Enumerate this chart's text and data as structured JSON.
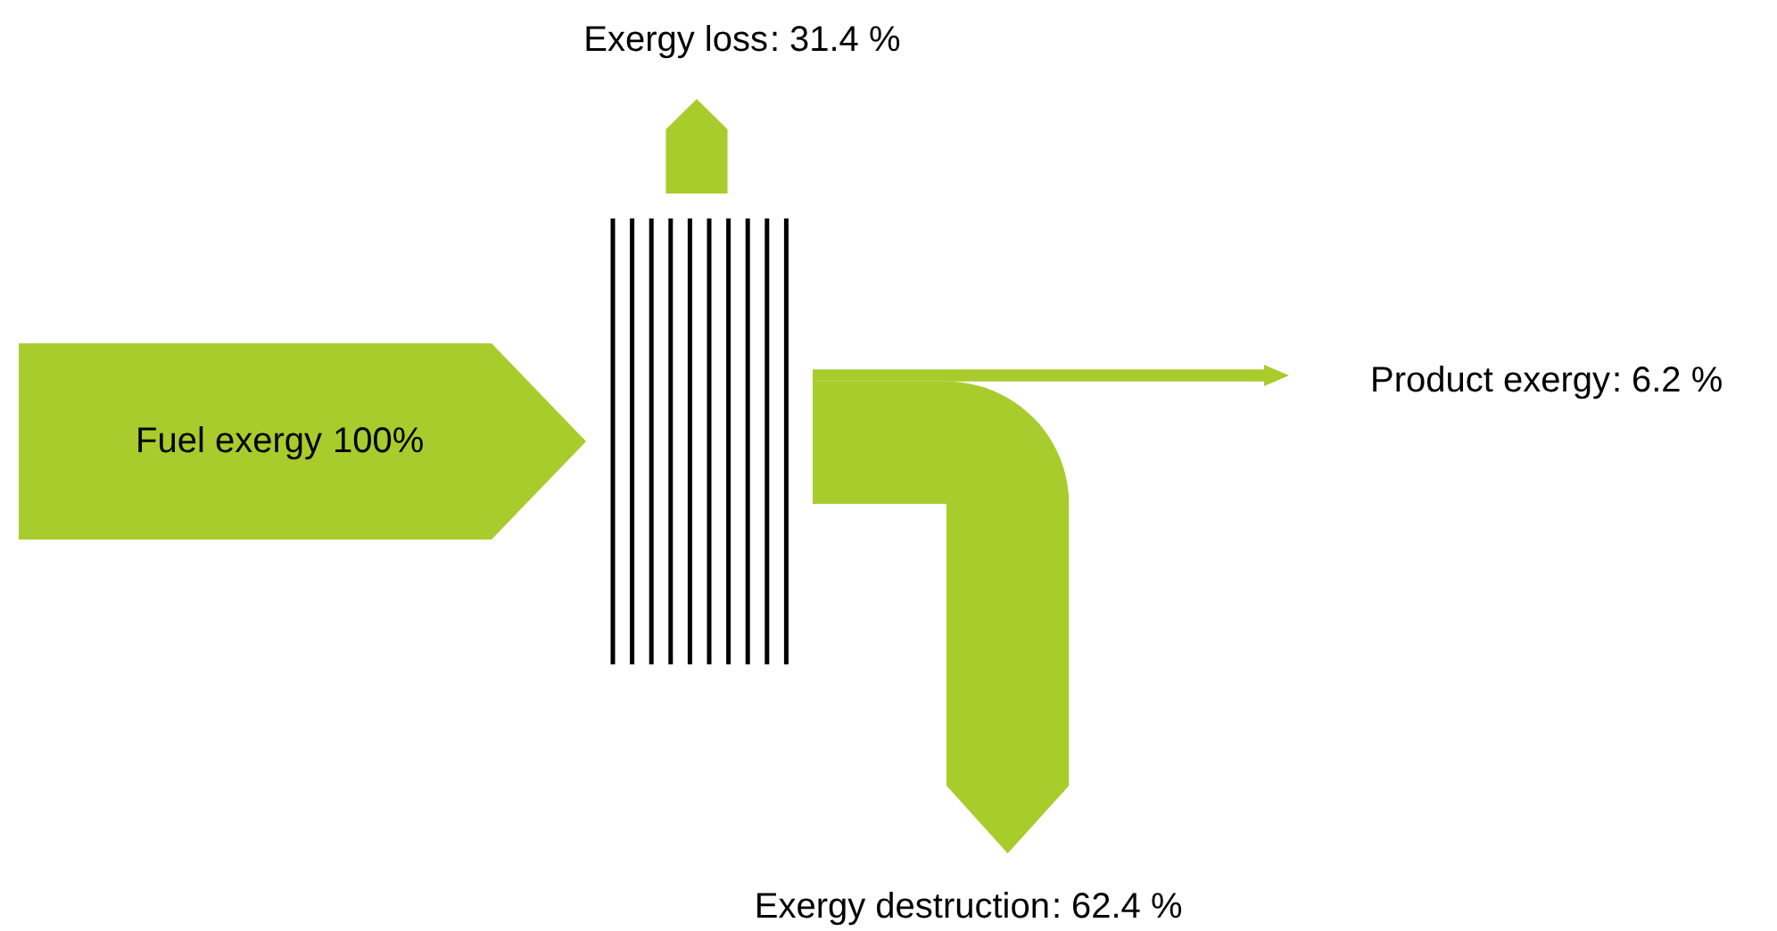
{
  "chart_data": {
    "type": "other",
    "categories": [
      "Fuel exergy",
      "Exergy loss",
      "Product exergy",
      "Exergy destruction"
    ],
    "values": [
      100,
      31.4,
      6.2,
      62.4
    ],
    "value_labels": [
      "100%",
      "31.4 %",
      "6.2 %",
      "62.4 %"
    ],
    "annotations": [
      ":",
      ":",
      ":"
    ],
    "color": "#a8cc2c"
  }
}
